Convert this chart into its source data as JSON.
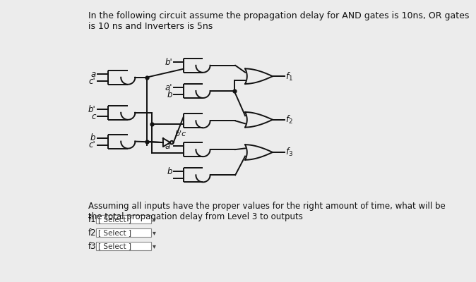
{
  "background_color": "#ececec",
  "panel_color": "#f5f5f5",
  "title_text": "In the following circuit assume the propagation delay for AND gates is 10ns, OR gates\nis 10 ns and Inverters is 5ns",
  "question_text": "Assuming all inputs have the proper values for the right amount of time, what will be\nthe total propagation delay from Level 3 to outputs",
  "f_labels": [
    "f1",
    "f2",
    "f3"
  ],
  "select_label": "[ Select ]",
  "text_color": "#111111",
  "gate_color": "#111111",
  "wire_color": "#111111",
  "title_fontsize": 9.0,
  "question_fontsize": 8.5,
  "label_fontsize": 8.5
}
